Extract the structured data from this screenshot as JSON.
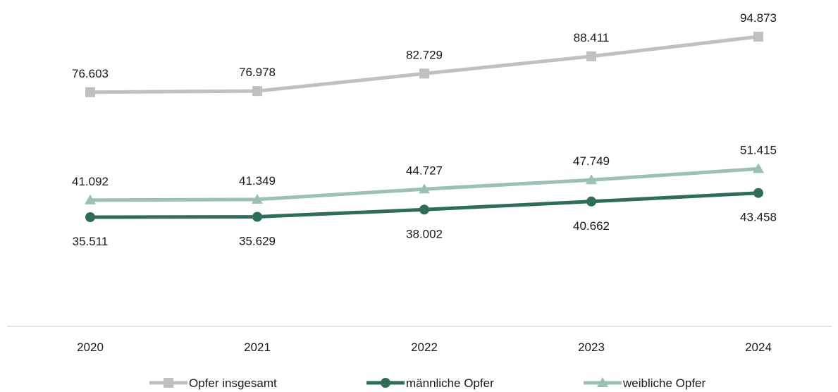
{
  "chart_data": {
    "type": "line",
    "categories": [
      "2020",
      "2021",
      "2022",
      "2023",
      "2024"
    ],
    "series": [
      {
        "name": "Opfer insgesamt",
        "values": [
          76603,
          76978,
          82729,
          88411,
          94873
        ],
        "labels": [
          "76.603",
          "76.978",
          "82.729",
          "88.411",
          "94.873"
        ],
        "color": "#c0c0c0",
        "marker": "square",
        "label_position": "above"
      },
      {
        "name": "männliche Opfer",
        "values": [
          35511,
          35629,
          38002,
          40662,
          43458
        ],
        "labels": [
          "35.511",
          "35.629",
          "38.002",
          "40.662",
          "43.458"
        ],
        "color": "#2e6e58",
        "marker": "circle",
        "label_position": "below"
      },
      {
        "name": "weibliche Opfer",
        "values": [
          41092,
          41349,
          44727,
          47749,
          51415
        ],
        "labels": [
          "41.092",
          "41.349",
          "44.727",
          "47.749",
          "51.415"
        ],
        "color": "#9cc0b2",
        "marker": "triangle",
        "label_position": "above"
      }
    ],
    "ylim": [
      0,
      100000
    ],
    "grid": false,
    "legend_position": "bottom"
  }
}
